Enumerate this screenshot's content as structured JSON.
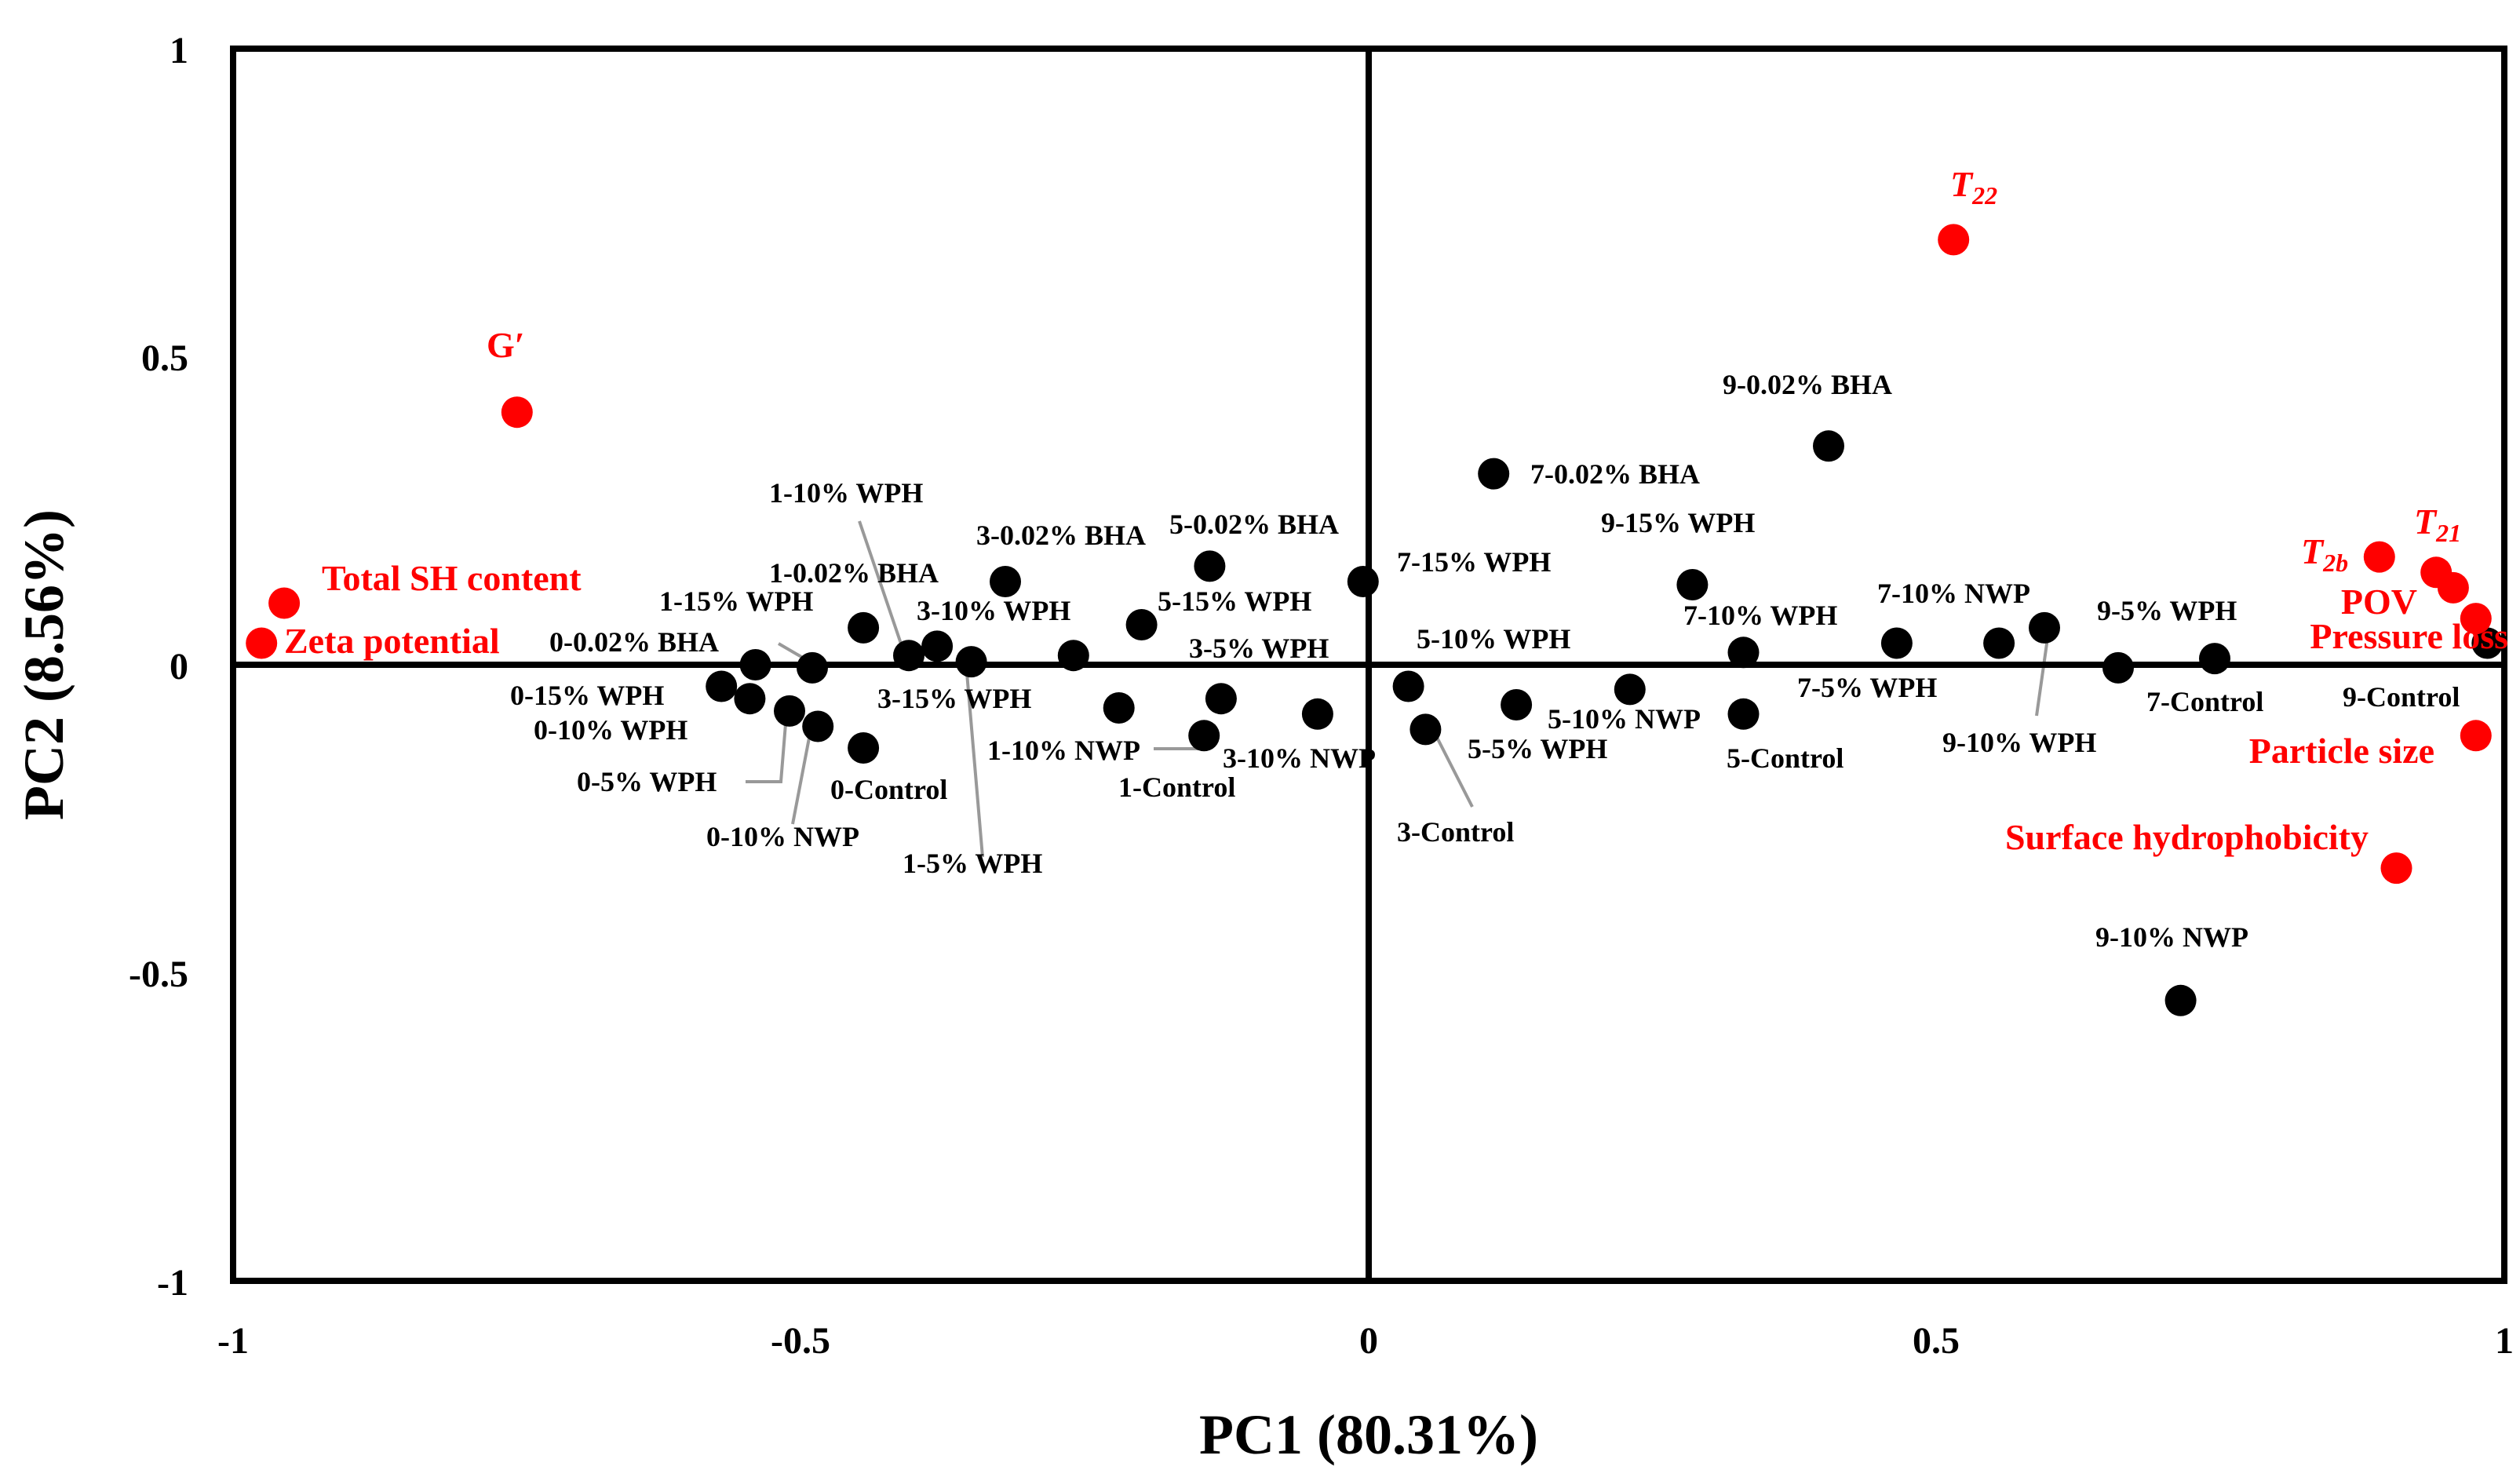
{
  "chart_data": {
    "type": "scatter",
    "xlabel": "PC1 (80.31%)",
    "ylabel": "PC2 (8.56%)",
    "xlim": [
      -1,
      1
    ],
    "ylim": [
      -1,
      1
    ],
    "xticks": [
      "-1",
      "-0.5",
      "0",
      "0.5",
      "1"
    ],
    "yticks": [
      "1",
      "0.5",
      "0",
      "-0.5",
      "-1"
    ],
    "colors": {
      "samples": "#000000",
      "variables": "#ff0000",
      "leader": "#999999"
    },
    "samples": [
      {
        "label": "0-0.02% BHA",
        "x": -0.54,
        "y": 0.0
      },
      {
        "label": "0-15% WPH",
        "x": -0.57,
        "y": -0.035
      },
      {
        "label": "0-10% WPH",
        "x": -0.545,
        "y": -0.055
      },
      {
        "label": "0-5% WPH",
        "x": -0.51,
        "y": -0.075
      },
      {
        "label": "0-10% NWP",
        "x": -0.485,
        "y": -0.1
      },
      {
        "label": "0-Control",
        "x": -0.445,
        "y": -0.135
      },
      {
        "label": "1-10% WPH",
        "x": -0.405,
        "y": 0.015
      },
      {
        "label": "1-15% WPH",
        "x": -0.49,
        "y": -0.005
      },
      {
        "label": "1-0.02% BHA",
        "x": -0.445,
        "y": 0.06
      },
      {
        "label": "1-5% WPH",
        "x": -0.35,
        "y": 0.005
      },
      {
        "label": "1-10% NWP",
        "x": -0.22,
        "y": -0.07
      },
      {
        "label": "1-Control",
        "x": -0.145,
        "y": -0.115
      },
      {
        "label": "3-0.02% BHA",
        "x": -0.32,
        "y": 0.135
      },
      {
        "label": "3-10% WPH",
        "x": -0.38,
        "y": 0.03
      },
      {
        "label": "3-15% WPH",
        "x": -0.26,
        "y": 0.015
      },
      {
        "label": "3-5% WPH",
        "x": -0.13,
        "y": -0.055
      },
      {
        "label": "3-10% NWP",
        "x": -0.045,
        "y": -0.08
      },
      {
        "label": "3-Control",
        "x": 0.05,
        "y": -0.105
      },
      {
        "label": "5-0.02% BHA",
        "x": -0.14,
        "y": 0.16
      },
      {
        "label": "5-15% WPH",
        "x": -0.2,
        "y": 0.065
      },
      {
        "label": "5-10% WPH",
        "x": 0.035,
        "y": -0.035
      },
      {
        "label": "5-5% WPH",
        "x": 0.13,
        "y": -0.065
      },
      {
        "label": "5-10% NWP",
        "x": 0.23,
        "y": -0.04
      },
      {
        "label": "5-Control",
        "x": 0.33,
        "y": -0.08
      },
      {
        "label": "7-15% WPH",
        "x": -0.005,
        "y": 0.135
      },
      {
        "label": "7-0.02% BHA",
        "x": 0.11,
        "y": 0.31
      },
      {
        "label": "7-10% WPH",
        "x": 0.33,
        "y": 0.02
      },
      {
        "label": "7-5% WPH",
        "x": 0.465,
        "y": 0.035
      },
      {
        "label": "7-10% NWP",
        "x": 0.555,
        "y": 0.035
      },
      {
        "label": "7-Control",
        "x": 0.66,
        "y": -0.005
      },
      {
        "label": "9-0.02% BHA",
        "x": 0.405,
        "y": 0.355
      },
      {
        "label": "9-15% WPH",
        "x": 0.285,
        "y": 0.13
      },
      {
        "label": "9-10% WPH",
        "x": 0.595,
        "y": 0.06
      },
      {
        "label": "9-5% WPH",
        "x": 0.745,
        "y": 0.01
      },
      {
        "label": "9-Control",
        "x": 0.985,
        "y": 0.035
      },
      {
        "label": "9-10% NWP",
        "x": 0.715,
        "y": -0.545
      }
    ],
    "variables": [
      {
        "label": "G′",
        "x": -0.75,
        "y": 0.41
      },
      {
        "label": "Total SH content",
        "x": -0.955,
        "y": 0.1
      },
      {
        "label": "Zeta potential",
        "x": -0.975,
        "y": 0.035
      },
      {
        "label": "T22",
        "x": 0.515,
        "y": 0.69
      },
      {
        "label": "T2b",
        "x": 0.89,
        "y": 0.175
      },
      {
        "label": "T21",
        "x": 0.94,
        "y": 0.15
      },
      {
        "label": "POV",
        "x": 0.955,
        "y": 0.125
      },
      {
        "label": "Pressure loss",
        "x": 0.975,
        "y": 0.075
      },
      {
        "label": "Particle size",
        "x": 0.975,
        "y": -0.115
      },
      {
        "label": "Surface hydrophobicity",
        "x": 0.905,
        "y": -0.33
      }
    ]
  }
}
